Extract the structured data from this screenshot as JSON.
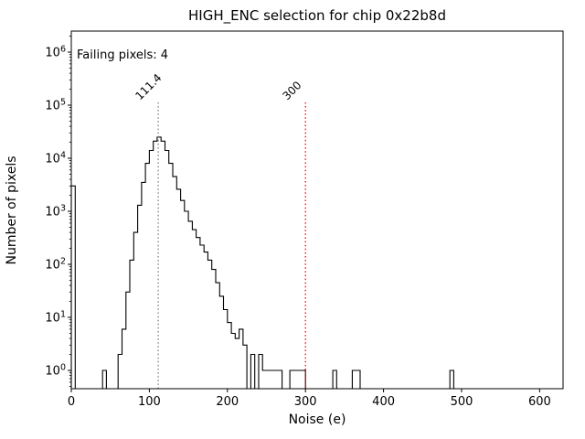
{
  "chart_data": {
    "type": "histogram",
    "title": "HIGH_ENC selection for chip 0x22b8d",
    "xlabel": "Noise (e)",
    "ylabel": "Number of pixels",
    "annotation": "Failing pixels: 4",
    "annotation_color": "#ff0000",
    "y_scale": "log",
    "x_ticks": [
      0,
      100,
      200,
      300,
      400,
      500,
      600
    ],
    "y_tick_exponents": [
      0,
      1,
      2,
      3,
      4,
      5,
      6
    ],
    "xlim": [
      0,
      630
    ],
    "bin_width": 5,
    "bins": [
      [
        0,
        3000
      ],
      [
        40,
        1
      ],
      [
        60,
        2
      ],
      [
        65,
        6
      ],
      [
        70,
        30
      ],
      [
        75,
        120
      ],
      [
        80,
        400
      ],
      [
        85,
        1300
      ],
      [
        90,
        3500
      ],
      [
        95,
        8000
      ],
      [
        100,
        14000
      ],
      [
        105,
        21000
      ],
      [
        110,
        25000
      ],
      [
        115,
        21000
      ],
      [
        120,
        14000
      ],
      [
        125,
        8000
      ],
      [
        130,
        4500
      ],
      [
        135,
        2600
      ],
      [
        140,
        1600
      ],
      [
        145,
        1000
      ],
      [
        150,
        650
      ],
      [
        155,
        450
      ],
      [
        160,
        320
      ],
      [
        165,
        230
      ],
      [
        170,
        170
      ],
      [
        175,
        120
      ],
      [
        180,
        80
      ],
      [
        185,
        45
      ],
      [
        190,
        25
      ],
      [
        195,
        14
      ],
      [
        200,
        8
      ],
      [
        205,
        5
      ],
      [
        210,
        4
      ],
      [
        215,
        6
      ],
      [
        220,
        3
      ],
      [
        230,
        2
      ],
      [
        240,
        2
      ],
      [
        245,
        1
      ],
      [
        250,
        1
      ],
      [
        255,
        1
      ],
      [
        260,
        1
      ],
      [
        265,
        1
      ],
      [
        280,
        1
      ],
      [
        285,
        1
      ],
      [
        290,
        1
      ],
      [
        295,
        1
      ],
      [
        335,
        1
      ],
      [
        360,
        1
      ],
      [
        365,
        1
      ],
      [
        485,
        1
      ]
    ],
    "vlines": [
      {
        "x": 111.4,
        "label": "111.4",
        "color": "#7f7f7f"
      },
      {
        "x": 300,
        "label": "300",
        "color": "#ff0000"
      }
    ],
    "style": {
      "line_color": "#000000",
      "axis_color": "#000000",
      "background": "#ffffff"
    },
    "legend": null
  }
}
